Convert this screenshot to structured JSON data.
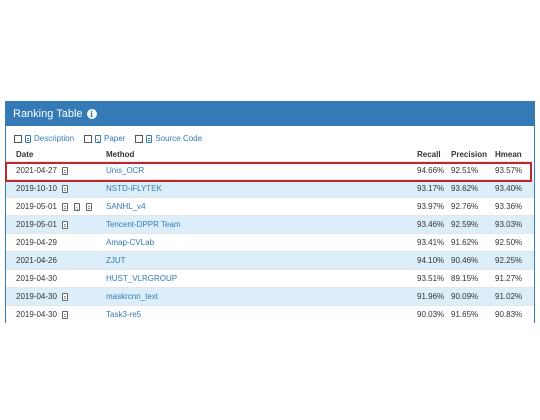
{
  "panel": {
    "title": "Ranking Table",
    "info_icon": "info-circle-icon"
  },
  "toggles": [
    {
      "label": "Description",
      "icon": "document-icon"
    },
    {
      "label": "Paper",
      "icon": "pdf-icon"
    },
    {
      "label": "Source Code",
      "icon": "code-icon"
    }
  ],
  "table": {
    "columns": [
      "Date",
      "Method",
      "Recall",
      "Precision",
      "Hmean"
    ],
    "rows": [
      {
        "date": "2021-04-27",
        "icons": [
          "document-icon"
        ],
        "method": "Unis_OCR",
        "recall": "94.66%",
        "precision": "92.51%",
        "hmean": "93.57%",
        "highlighted": true
      },
      {
        "date": "2019-10-10",
        "icons": [
          "document-icon"
        ],
        "method": "NSTD-iFLYTEK",
        "recall": "93.17%",
        "precision": "93.62%",
        "hmean": "93.40%"
      },
      {
        "date": "2019-05-01",
        "icons": [
          "document-icon",
          "pdf-icon",
          "document-icon"
        ],
        "method": "SANHL_v4",
        "recall": "93.97%",
        "precision": "92.76%",
        "hmean": "93.36%"
      },
      {
        "date": "2019-05-01",
        "icons": [
          "document-icon"
        ],
        "method": "Tencent-DPPR Team",
        "recall": "93.46%",
        "precision": "92.59%",
        "hmean": "93.03%"
      },
      {
        "date": "2019-04-29",
        "icons": [],
        "method": "Amap-CVLab",
        "recall": "93.41%",
        "precision": "91.62%",
        "hmean": "92.50%"
      },
      {
        "date": "2021-04-26",
        "icons": [],
        "method": "ZJUT",
        "recall": "94.10%",
        "precision": "90.46%",
        "hmean": "92.25%"
      },
      {
        "date": "2019-04-30",
        "icons": [],
        "method": "HUST_VLRGROUP",
        "recall": "93.51%",
        "precision": "89.15%",
        "hmean": "91.27%"
      },
      {
        "date": "2019-04-30",
        "icons": [
          "document-icon"
        ],
        "method": "maskrcnn_text",
        "recall": "91.96%",
        "precision": "90.09%",
        "hmean": "91.02%"
      },
      {
        "date": "2019-04-30",
        "icons": [
          "document-icon"
        ],
        "method": "Task3-re5",
        "recall": "90.03%",
        "precision": "91.65%",
        "hmean": "90.83%"
      }
    ]
  },
  "colors": {
    "header_bg": "#337ab7",
    "row_alt": "#dbeef9",
    "highlight": "#c0282d",
    "link": "#337ab7"
  }
}
